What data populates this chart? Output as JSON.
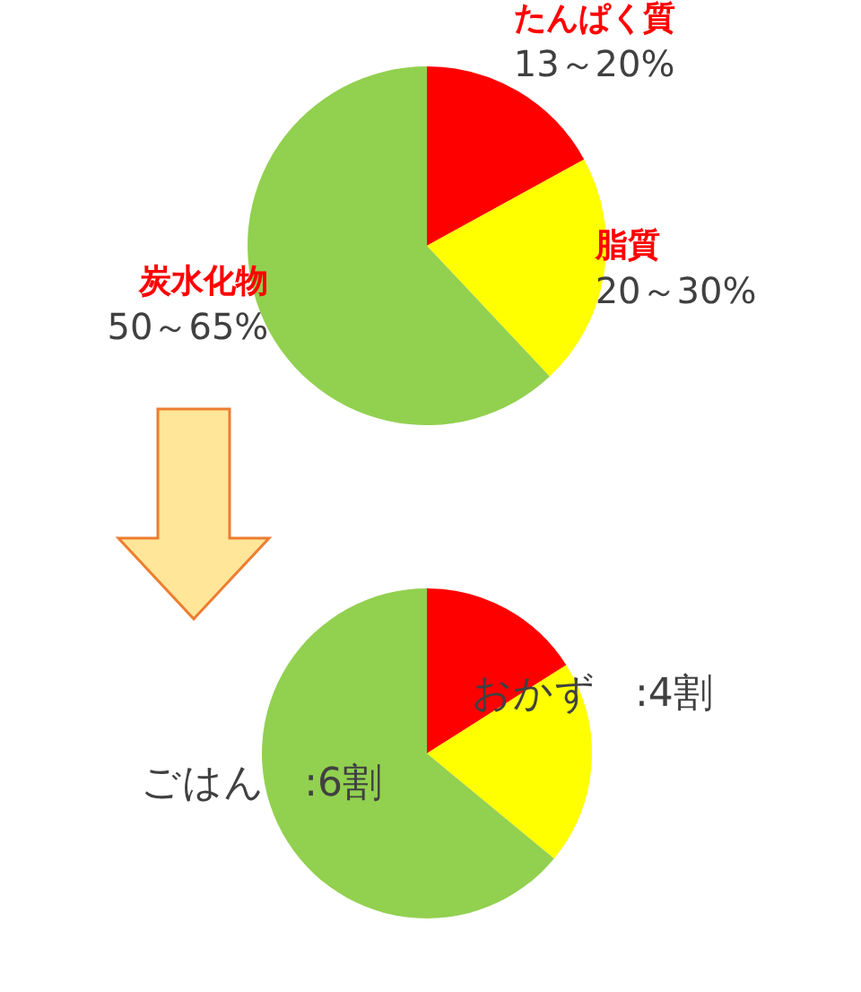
{
  "chart_data": [
    {
      "type": "pie",
      "categories": [
        "たんぱく質",
        "脂質",
        "炭水化物"
      ],
      "values": [
        17,
        21,
        62
      ],
      "colors": [
        "#ff0000",
        "#ffff00",
        "#92d050"
      ],
      "annotations": [
        "13～20%",
        "20～30%",
        "50～65%"
      ]
    },
    {
      "type": "pie",
      "categories": [
        null,
        null,
        null
      ],
      "values": [
        16,
        20,
        64
      ],
      "colors": [
        "#ff0000",
        "#ffff00",
        "#92d050"
      ],
      "annotations": [
        "おかず　:4割",
        "ごはん　:6割"
      ]
    }
  ]
}
